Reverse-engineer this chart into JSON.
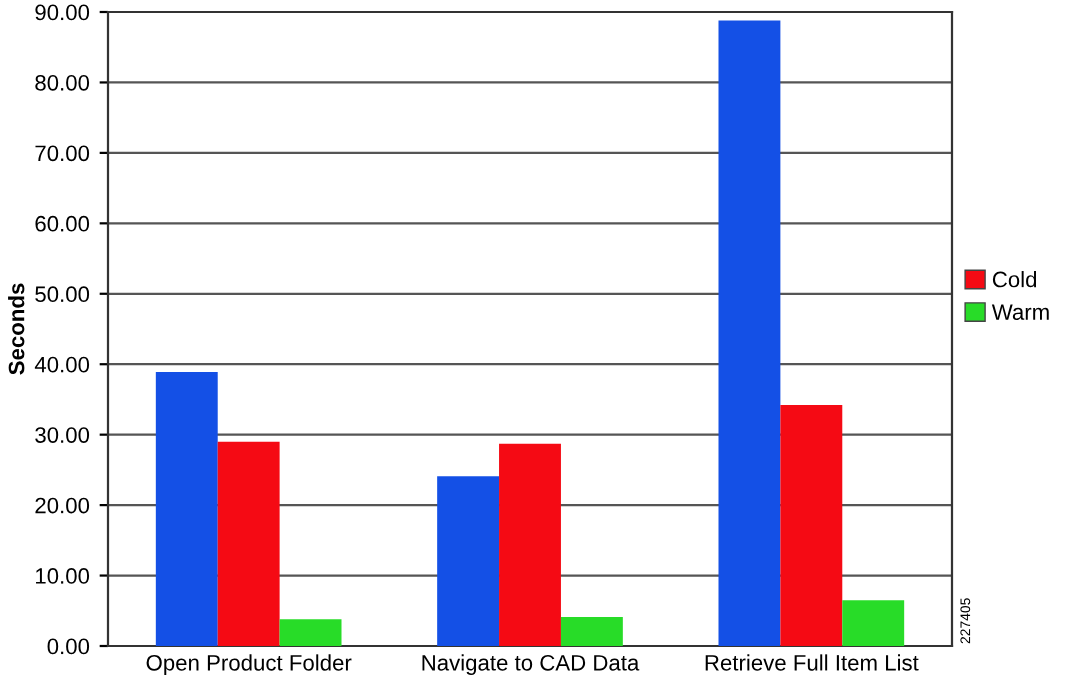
{
  "chart_data": {
    "type": "bar",
    "ylabel": "Seconds",
    "categories": [
      "Open Product Folder",
      "Navigate to CAD Data",
      "Retrieve Full Item List"
    ],
    "series": [
      {
        "color": "#1450e6",
        "values": [
          38.9,
          24.1,
          88.8
        ]
      },
      {
        "name": "Cold",
        "color": "#f50a14",
        "values": [
          29.0,
          28.7,
          34.2
        ]
      },
      {
        "name": "Warm",
        "color": "#28dc28",
        "values": [
          3.8,
          4.1,
          6.5
        ]
      }
    ],
    "ylim": [
      0,
      90
    ],
    "yticks": [
      {
        "value": 0,
        "label": "0.00"
      },
      {
        "value": 10,
        "label": "10.00"
      },
      {
        "value": 20,
        "label": "20.00"
      },
      {
        "value": 30,
        "label": "30.00"
      },
      {
        "value": 40,
        "label": "40.00"
      },
      {
        "value": 50,
        "label": "50.00"
      },
      {
        "value": 60,
        "label": "60.00"
      },
      {
        "value": 70,
        "label": "70.00"
      },
      {
        "value": 80,
        "label": "80.00"
      },
      {
        "value": 90,
        "label": "90.00"
      }
    ],
    "grid": "y",
    "legend": "right",
    "annotations": [
      "227405"
    ]
  }
}
